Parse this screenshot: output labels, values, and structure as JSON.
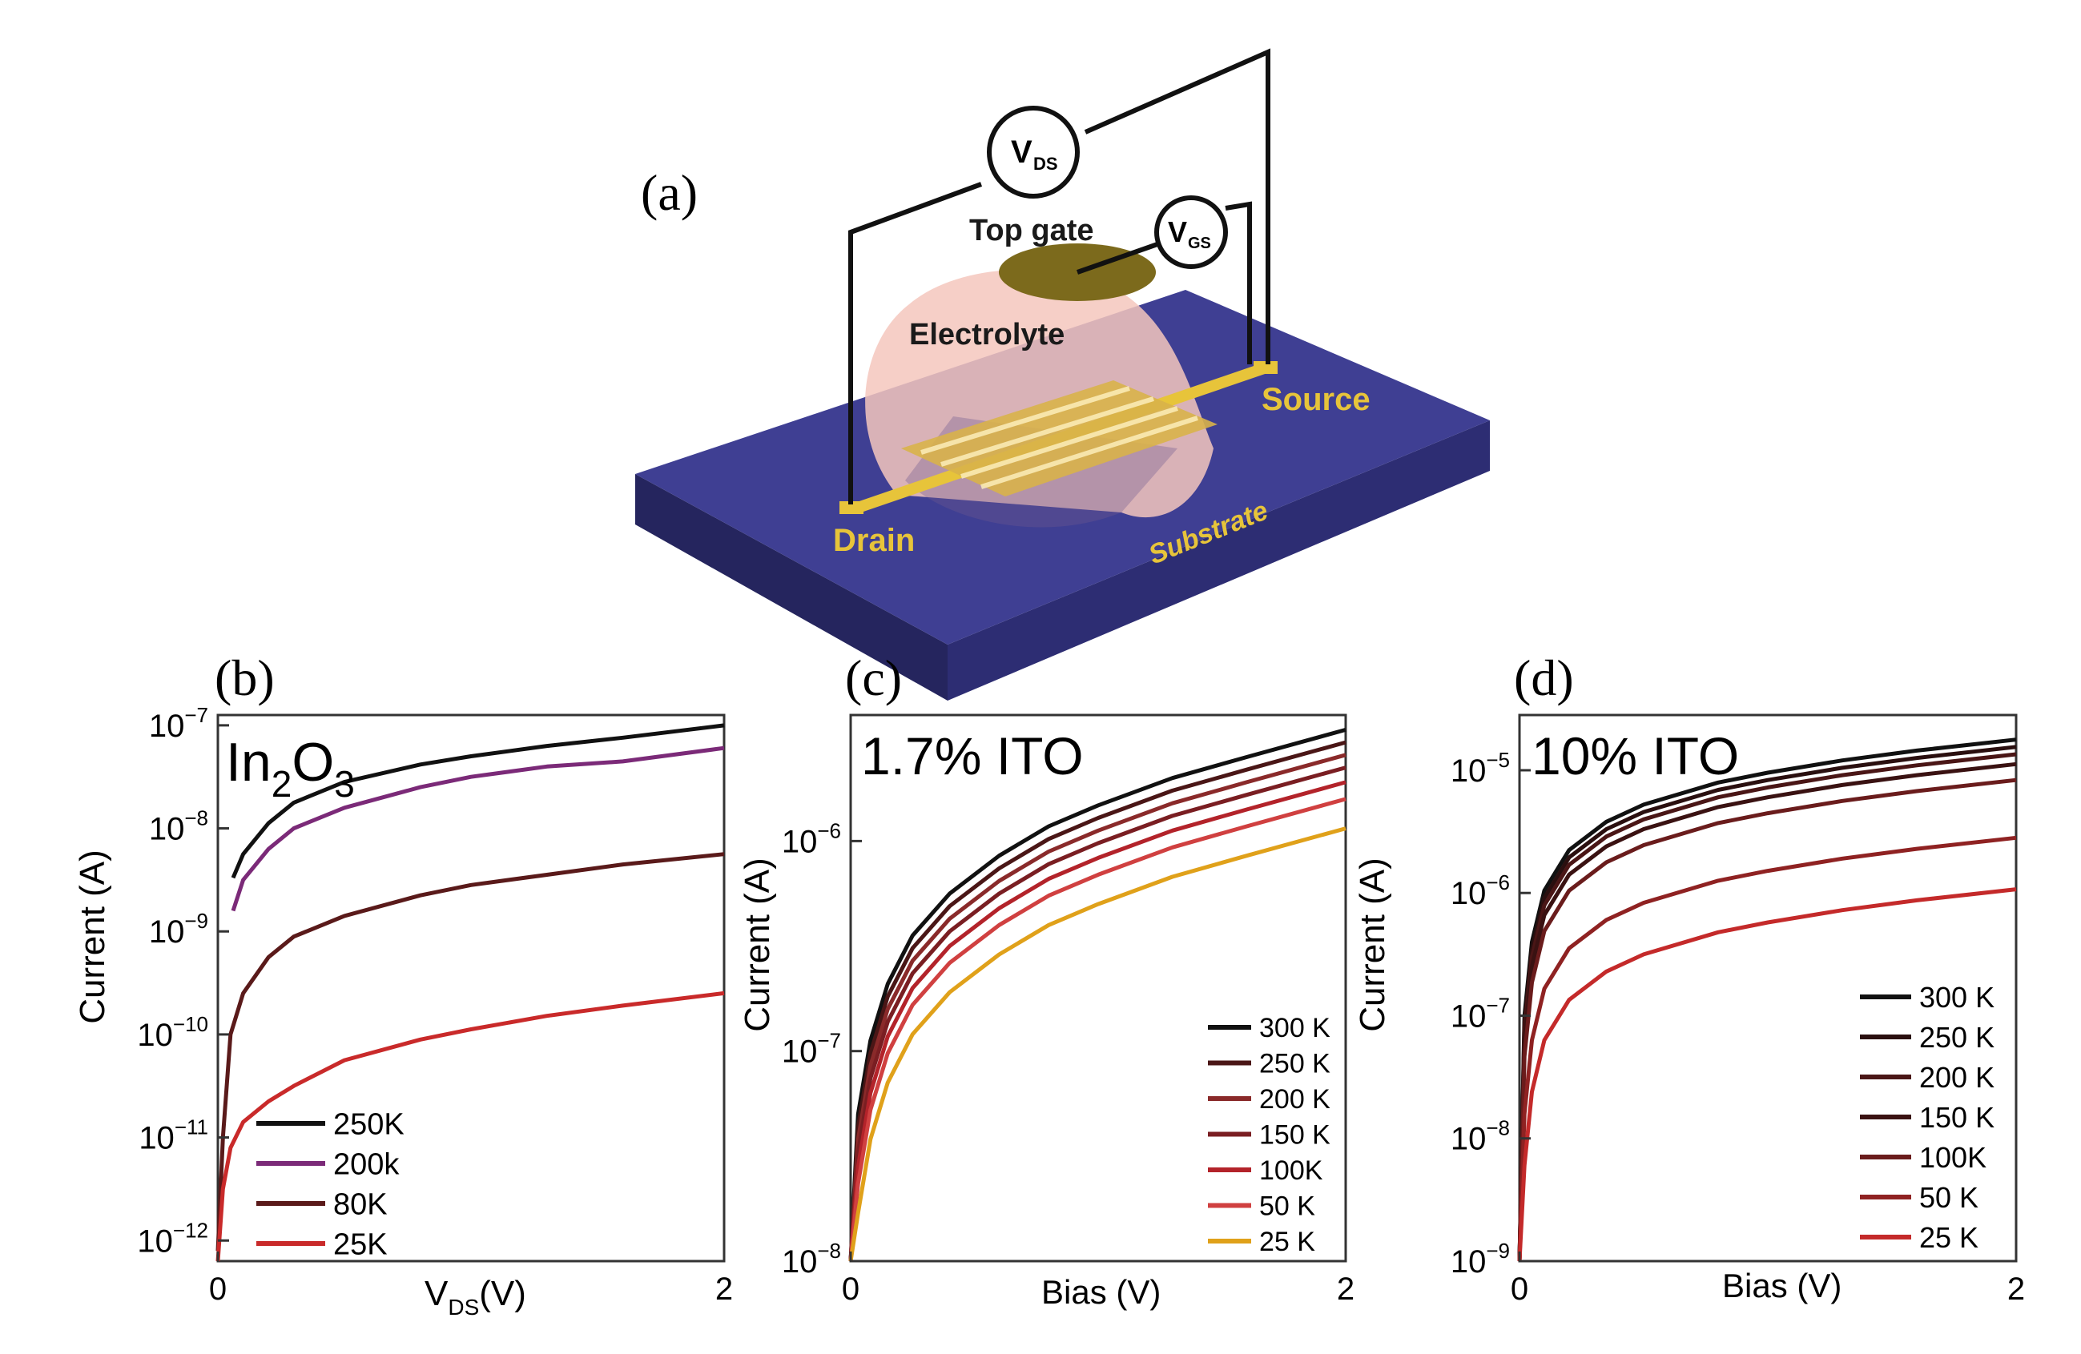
{
  "schematic": {
    "panel_label": "(a)",
    "labels": {
      "vds": "V",
      "vds_sub": "DS",
      "vgs": "V",
      "vgs_sub": "GS",
      "top_gate": "Top gate",
      "electrolyte": "Electrolyte",
      "source": "Source",
      "drain": "Drain",
      "substrate": "Substrate"
    },
    "colors": {
      "substrate_top": "#3f3f93",
      "substrate_side": "#2d2d73",
      "substrate_front": "#25255e",
      "gold": "#e7c43a",
      "gate": "#7c6a1c",
      "electrolyte": "#f4c7bd",
      "wire": "#111111"
    }
  },
  "chart_data": [
    {
      "type": "line",
      "panel_label": "(b)",
      "inset_title": "In2O3",
      "inset_title_main": "In",
      "inset_title_sub1": "2",
      "inset_title_mid": "O",
      "inset_title_sub2": "3",
      "xlabel_main": "V",
      "xlabel_sub": "DS",
      "xlabel_unit": "(V)",
      "ylabel": "Current (A)",
      "xlim": [
        0,
        2
      ],
      "ylim_log10": [
        -12.2,
        -6.9
      ],
      "x_ticks": [
        0,
        2
      ],
      "x_tick_labels": [
        "0",
        "2"
      ],
      "y_ticks_exp": [
        -7,
        -8,
        -9,
        -10,
        -11,
        -12
      ],
      "y_tick_base": "10",
      "legend_position": "lower-left",
      "series": [
        {
          "name": "250K",
          "color": "#111111",
          "x": [
            0.06,
            0.1,
            0.2,
            0.3,
            0.5,
            0.8,
            1.0,
            1.3,
            1.6,
            2.0
          ],
          "y_log10": [
            -8.48,
            -8.25,
            -7.95,
            -7.75,
            -7.55,
            -7.38,
            -7.3,
            -7.2,
            -7.12,
            -7.0
          ]
        },
        {
          "name": "200k",
          "color": "#7b2a78",
          "x": [
            0.06,
            0.1,
            0.2,
            0.3,
            0.5,
            0.8,
            1.0,
            1.3,
            1.6,
            2.0
          ],
          "y_log10": [
            -8.8,
            -8.5,
            -8.2,
            -8.0,
            -7.8,
            -7.6,
            -7.5,
            -7.4,
            -7.35,
            -7.22
          ]
        },
        {
          "name": "80K",
          "color": "#5a1a1a",
          "x": [
            0.0,
            0.02,
            0.05,
            0.1,
            0.2,
            0.3,
            0.5,
            0.8,
            1.0,
            1.3,
            1.6,
            2.0
          ],
          "y_log10": [
            -12.1,
            -11.0,
            -10.0,
            -9.6,
            -9.25,
            -9.05,
            -8.85,
            -8.65,
            -8.55,
            -8.45,
            -8.35,
            -8.25
          ]
        },
        {
          "name": "25K",
          "color": "#c92a2a",
          "x": [
            0.0,
            0.02,
            0.05,
            0.1,
            0.2,
            0.3,
            0.5,
            0.8,
            1.0,
            1.3,
            1.6,
            2.0
          ],
          "y_log10": [
            -12.2,
            -11.5,
            -11.1,
            -10.85,
            -10.65,
            -10.5,
            -10.25,
            -10.05,
            -9.95,
            -9.82,
            -9.72,
            -9.6
          ]
        }
      ]
    },
    {
      "type": "line",
      "panel_label": "(c)",
      "inset_title": "1.7% ITO",
      "xlabel": "Bias (V)",
      "ylabel": "Current (A)",
      "xlim": [
        0,
        2
      ],
      "ylim_log10": [
        -8.0,
        -5.4
      ],
      "x_ticks": [
        0,
        2
      ],
      "x_tick_labels": [
        "0",
        "2"
      ],
      "y_ticks_exp": [
        -6,
        -7,
        -8
      ],
      "y_tick_base": "10",
      "legend_position": "lower-right",
      "series": [
        {
          "name": "300 K",
          "color": "#111111",
          "shift": 0.0
        },
        {
          "name": "250 K",
          "color": "#4a1616",
          "shift": -0.06
        },
        {
          "name": "200 K",
          "color": "#8a2a2a",
          "shift": -0.12
        },
        {
          "name": "150 K",
          "color": "#7a1e22",
          "shift": -0.18
        },
        {
          "name": "100K",
          "color": "#b3232a",
          "shift": -0.25
        },
        {
          "name": "50 K",
          "color": "#d04040",
          "shift": -0.33
        },
        {
          "name": "25 K",
          "color": "#e0a11a",
          "shift": -0.47
        }
      ],
      "base_curve": {
        "x": [
          0.0,
          0.03,
          0.08,
          0.15,
          0.25,
          0.4,
          0.6,
          0.8,
          1.0,
          1.3,
          1.6,
          2.0
        ],
        "y_log10": [
          -8.0,
          -7.3,
          -6.95,
          -6.68,
          -6.45,
          -6.25,
          -6.07,
          -5.93,
          -5.83,
          -5.7,
          -5.6,
          -5.47
        ]
      }
    },
    {
      "type": "line",
      "panel_label": "(d)",
      "inset_title": "10% ITO",
      "xlabel": "Bias (V)",
      "ylabel": "Current (A)",
      "xlim": [
        0,
        2
      ],
      "ylim_log10": [
        -9.0,
        -4.55
      ],
      "x_ticks": [
        0,
        2
      ],
      "x_tick_labels": [
        "0",
        "2"
      ],
      "y_ticks_exp": [
        -5,
        -6,
        -7,
        -8,
        -9
      ],
      "y_tick_base": "10",
      "legend_position": "lower-right",
      "series": [
        {
          "name": "300 K",
          "color": "#111111",
          "shift": 0.0
        },
        {
          "name": "250 K",
          "color": "#2a0f0f",
          "shift": -0.06
        },
        {
          "name": "200 K",
          "color": "#4a1616",
          "shift": -0.12
        },
        {
          "name": "150 K",
          "color": "#3a1212",
          "shift": -0.2
        },
        {
          "name": "100K",
          "color": "#6a1c1c",
          "shift": -0.33
        },
        {
          "name": "50 K",
          "color": "#8f2222",
          "shift": -0.8
        },
        {
          "name": "25 K",
          "color": "#c42a2a",
          "shift": -1.22
        }
      ],
      "base_curve": {
        "x": [
          0.0,
          0.02,
          0.05,
          0.1,
          0.2,
          0.35,
          0.5,
          0.8,
          1.0,
          1.3,
          1.6,
          2.0
        ],
        "y_log10": [
          -9.0,
          -7.0,
          -6.4,
          -5.98,
          -5.65,
          -5.42,
          -5.28,
          -5.1,
          -5.02,
          -4.92,
          -4.84,
          -4.75
        ]
      }
    }
  ]
}
